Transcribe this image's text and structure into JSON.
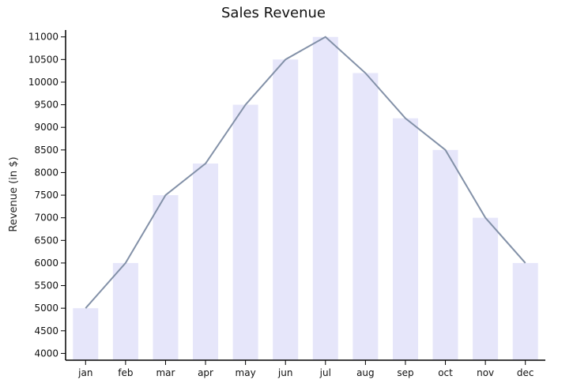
{
  "chart_data": {
    "type": "bar",
    "title": "Sales Revenue",
    "xlabel": "",
    "ylabel": "Revenue (in $)",
    "categories": [
      "jan",
      "feb",
      "mar",
      "apr",
      "may",
      "jun",
      "jul",
      "aug",
      "sep",
      "oct",
      "nov",
      "dec"
    ],
    "values": [
      5000,
      6000,
      7500,
      8200,
      9500,
      10500,
      11000,
      10200,
      9200,
      8500,
      7000,
      6000
    ],
    "overlay_line": true,
    "ylim": [
      3850,
      11100
    ],
    "yticks": [
      4000,
      4500,
      5000,
      5500,
      6000,
      6500,
      7000,
      7500,
      8000,
      8500,
      9000,
      9500,
      10000,
      10500,
      11000
    ],
    "grid": false,
    "legend": "none",
    "colors": {
      "bar": "#e6e6fa",
      "line": "#8391a8",
      "axis": "#000000"
    }
  }
}
